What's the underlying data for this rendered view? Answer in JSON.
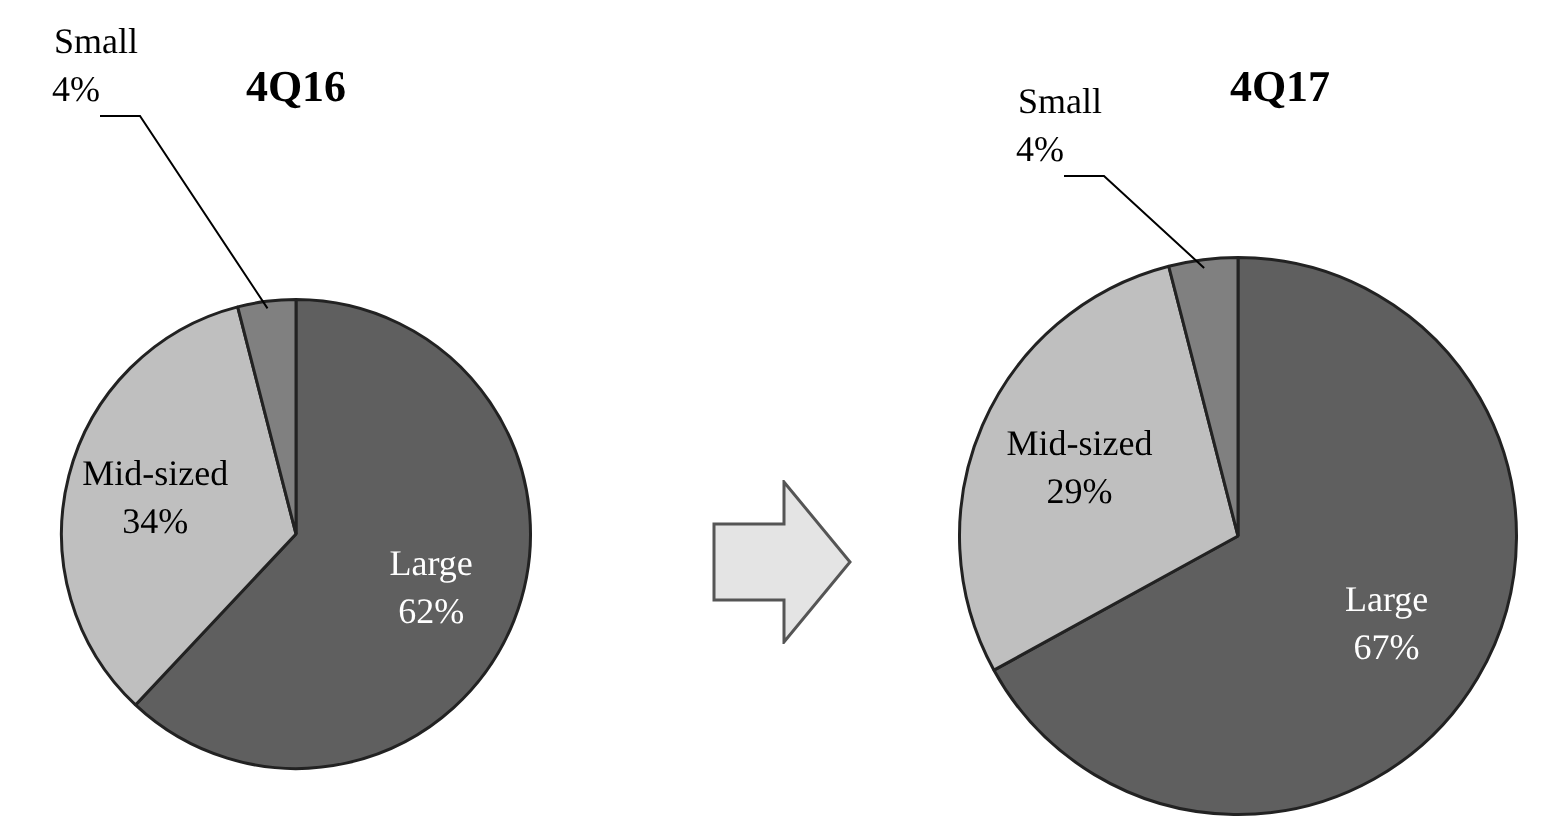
{
  "chart_data": [
    {
      "type": "pie",
      "title": "4Q16",
      "categories": [
        "Large",
        "Mid-sized",
        "Small"
      ],
      "values": [
        62,
        34,
        4
      ],
      "value_labels": [
        "62%",
        "34%",
        "4%"
      ],
      "colors": [
        "#5f5f5f",
        "#bfbfbf",
        "#808080"
      ]
    },
    {
      "type": "pie",
      "title": "4Q17",
      "categories": [
        "Large",
        "Mid-sized",
        "Small"
      ],
      "values": [
        67,
        29,
        4
      ],
      "value_labels": [
        "67%",
        "29%",
        "4%"
      ],
      "colors": [
        "#5f5f5f",
        "#bfbfbf",
        "#808080"
      ]
    }
  ]
}
